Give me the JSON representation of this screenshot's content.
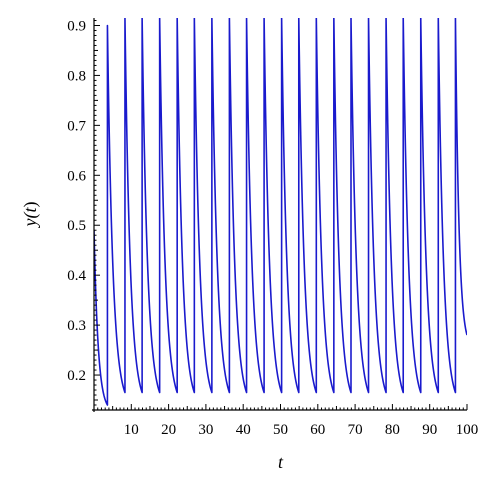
{
  "chart_data": {
    "type": "line",
    "title": "",
    "xlabel": "t",
    "ylabel_parts": [
      "y(",
      "t",
      ")"
    ],
    "xlim": [
      0,
      100
    ],
    "ylim": [
      0.13,
      0.915
    ],
    "x_ticks": [
      10,
      20,
      30,
      40,
      50,
      60,
      70,
      80,
      90,
      100
    ],
    "x_tick_labels": [
      "10",
      "20",
      "30",
      "40",
      "50",
      "60",
      "70",
      "80",
      "90",
      "100"
    ],
    "y_ticks": [
      0.2,
      0.3,
      0.4,
      0.5,
      0.6,
      0.7,
      0.8,
      0.9
    ],
    "y_tick_labels": [
      "0.2",
      "0.3",
      "0.4",
      "0.5",
      "0.6",
      "0.7",
      "0.8",
      "0.9"
    ],
    "grid": false,
    "line_color": "#1a1acd",
    "series": [
      {
        "initial_point": [
          0,
          0.49
        ],
        "first_minimum": [
          3.6,
          0.14
        ],
        "peaks": [
          [
            3.6,
            0.9
          ],
          [
            8.3,
            0.915
          ],
          [
            12.9,
            0.915
          ],
          [
            17.6,
            0.915
          ],
          [
            22.3,
            0.915
          ],
          [
            26.9,
            0.915
          ],
          [
            31.6,
            0.915
          ],
          [
            36.3,
            0.915
          ],
          [
            40.9,
            0.915
          ],
          [
            45.6,
            0.915
          ],
          [
            50.3,
            0.915
          ],
          [
            54.9,
            0.915
          ],
          [
            59.6,
            0.915
          ],
          [
            64.3,
            0.915
          ],
          [
            68.9,
            0.915
          ],
          [
            73.6,
            0.915
          ],
          [
            78.3,
            0.915
          ],
          [
            82.9,
            0.915
          ],
          [
            87.6,
            0.915
          ],
          [
            92.3,
            0.915
          ],
          [
            96.9,
            0.915
          ]
        ],
        "troughs": [
          [
            8.3,
            0.165
          ],
          [
            12.9,
            0.165
          ],
          [
            17.6,
            0.165
          ],
          [
            22.3,
            0.165
          ],
          [
            26.9,
            0.165
          ],
          [
            31.6,
            0.165
          ],
          [
            36.3,
            0.165
          ],
          [
            40.9,
            0.165
          ],
          [
            45.6,
            0.165
          ],
          [
            50.3,
            0.165
          ],
          [
            54.9,
            0.165
          ],
          [
            59.6,
            0.165
          ],
          [
            64.3,
            0.165
          ],
          [
            68.9,
            0.165
          ],
          [
            73.6,
            0.165
          ],
          [
            78.3,
            0.165
          ],
          [
            82.9,
            0.165
          ],
          [
            87.6,
            0.165
          ],
          [
            92.3,
            0.165
          ],
          [
            96.9,
            0.165
          ]
        ],
        "end_point": [
          100,
          0.28
        ]
      }
    ]
  }
}
